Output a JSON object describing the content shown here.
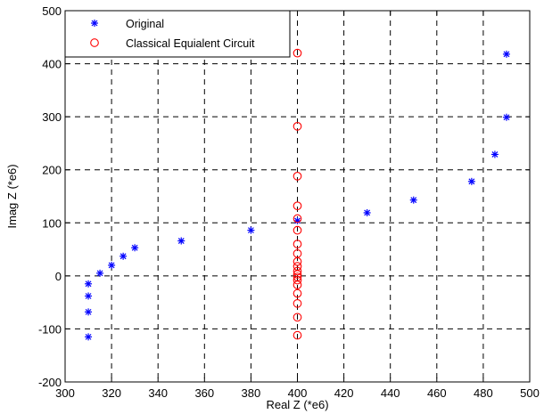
{
  "chart_data": {
    "type": "scatter",
    "xlabel": "Real Z (*e6)",
    "ylabel": "Imag Z (*e6)",
    "xlim": [
      300,
      500
    ],
    "ylim": [
      -200,
      500
    ],
    "xticks": [
      300,
      320,
      340,
      360,
      380,
      400,
      420,
      440,
      460,
      480,
      500
    ],
    "yticks": [
      -200,
      -100,
      0,
      100,
      200,
      300,
      400,
      500
    ],
    "grid": true,
    "legend_position": "top-left",
    "series": [
      {
        "name": "Original",
        "marker": "asterisk",
        "color": "#0000ff",
        "x": [
          310,
          310,
          310,
          310,
          315,
          320,
          325,
          330,
          350,
          380,
          400,
          430,
          450,
          475,
          485,
          490,
          490
        ],
        "y": [
          -115,
          -68,
          -38,
          -15,
          5,
          20,
          37,
          53,
          66,
          86,
          104,
          119,
          143,
          178,
          229,
          299,
          418
        ]
      },
      {
        "name": "Classical Equialent Circuit",
        "marker": "circle",
        "color": "#ff0000",
        "x": [
          400,
          400,
          400,
          400,
          400,
          400,
          400,
          400,
          400,
          400,
          400,
          400,
          400,
          400,
          400,
          400,
          400,
          400,
          400
        ],
        "y": [
          -112,
          -78,
          -52,
          -33,
          -17,
          -8,
          -2,
          3,
          9,
          18,
          27,
          42,
          60,
          86,
          108,
          132,
          188,
          282,
          420
        ]
      }
    ]
  }
}
